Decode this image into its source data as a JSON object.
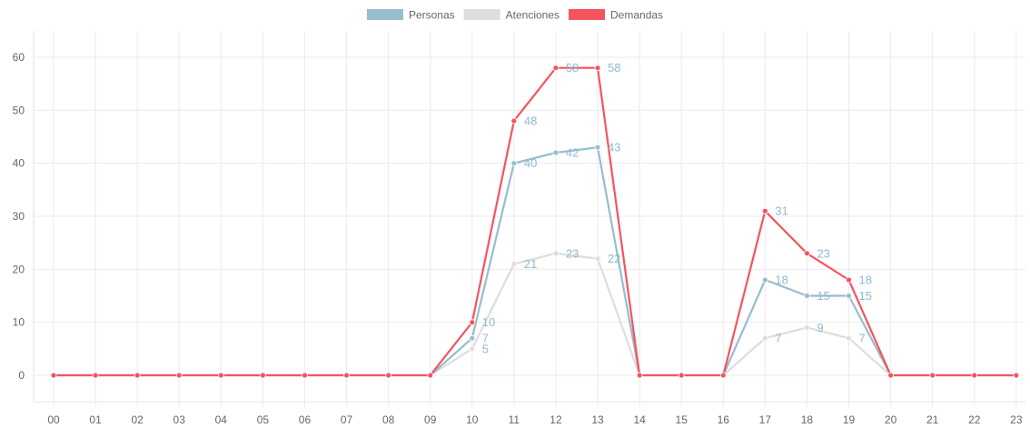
{
  "chart_data": {
    "type": "line",
    "title": "",
    "xlabel": "",
    "ylabel": "",
    "categories": [
      "00",
      "01",
      "02",
      "03",
      "04",
      "05",
      "06",
      "07",
      "08",
      "09",
      "10",
      "11",
      "12",
      "13",
      "14",
      "15",
      "16",
      "17",
      "18",
      "19",
      "20",
      "21",
      "22",
      "23"
    ],
    "ylim": [
      -5,
      65
    ],
    "yticks": [
      0,
      10,
      20,
      30,
      40,
      50,
      60
    ],
    "grid": true,
    "legend_position": "top-center",
    "series": [
      {
        "name": "Personas",
        "color": "#97bdcf",
        "values": [
          0,
          0,
          0,
          0,
          0,
          0,
          0,
          0,
          0,
          0,
          7,
          40,
          42,
          43,
          0,
          0,
          0,
          18,
          15,
          15,
          0,
          0,
          0,
          0
        ]
      },
      {
        "name": "Atenciones",
        "color": "#dddddd",
        "values": [
          0,
          0,
          0,
          0,
          0,
          0,
          0,
          0,
          0,
          0,
          5,
          21,
          23,
          22,
          0,
          0,
          0,
          7,
          9,
          7,
          0,
          0,
          0,
          0
        ]
      },
      {
        "name": "Demandas",
        "color": "#f5545e",
        "values": [
          0,
          0,
          0,
          0,
          0,
          0,
          0,
          0,
          0,
          0,
          10,
          48,
          58,
          58,
          0,
          0,
          0,
          31,
          23,
          18,
          0,
          0,
          0,
          0
        ]
      }
    ],
    "data_label_color": "#8fbad0"
  }
}
